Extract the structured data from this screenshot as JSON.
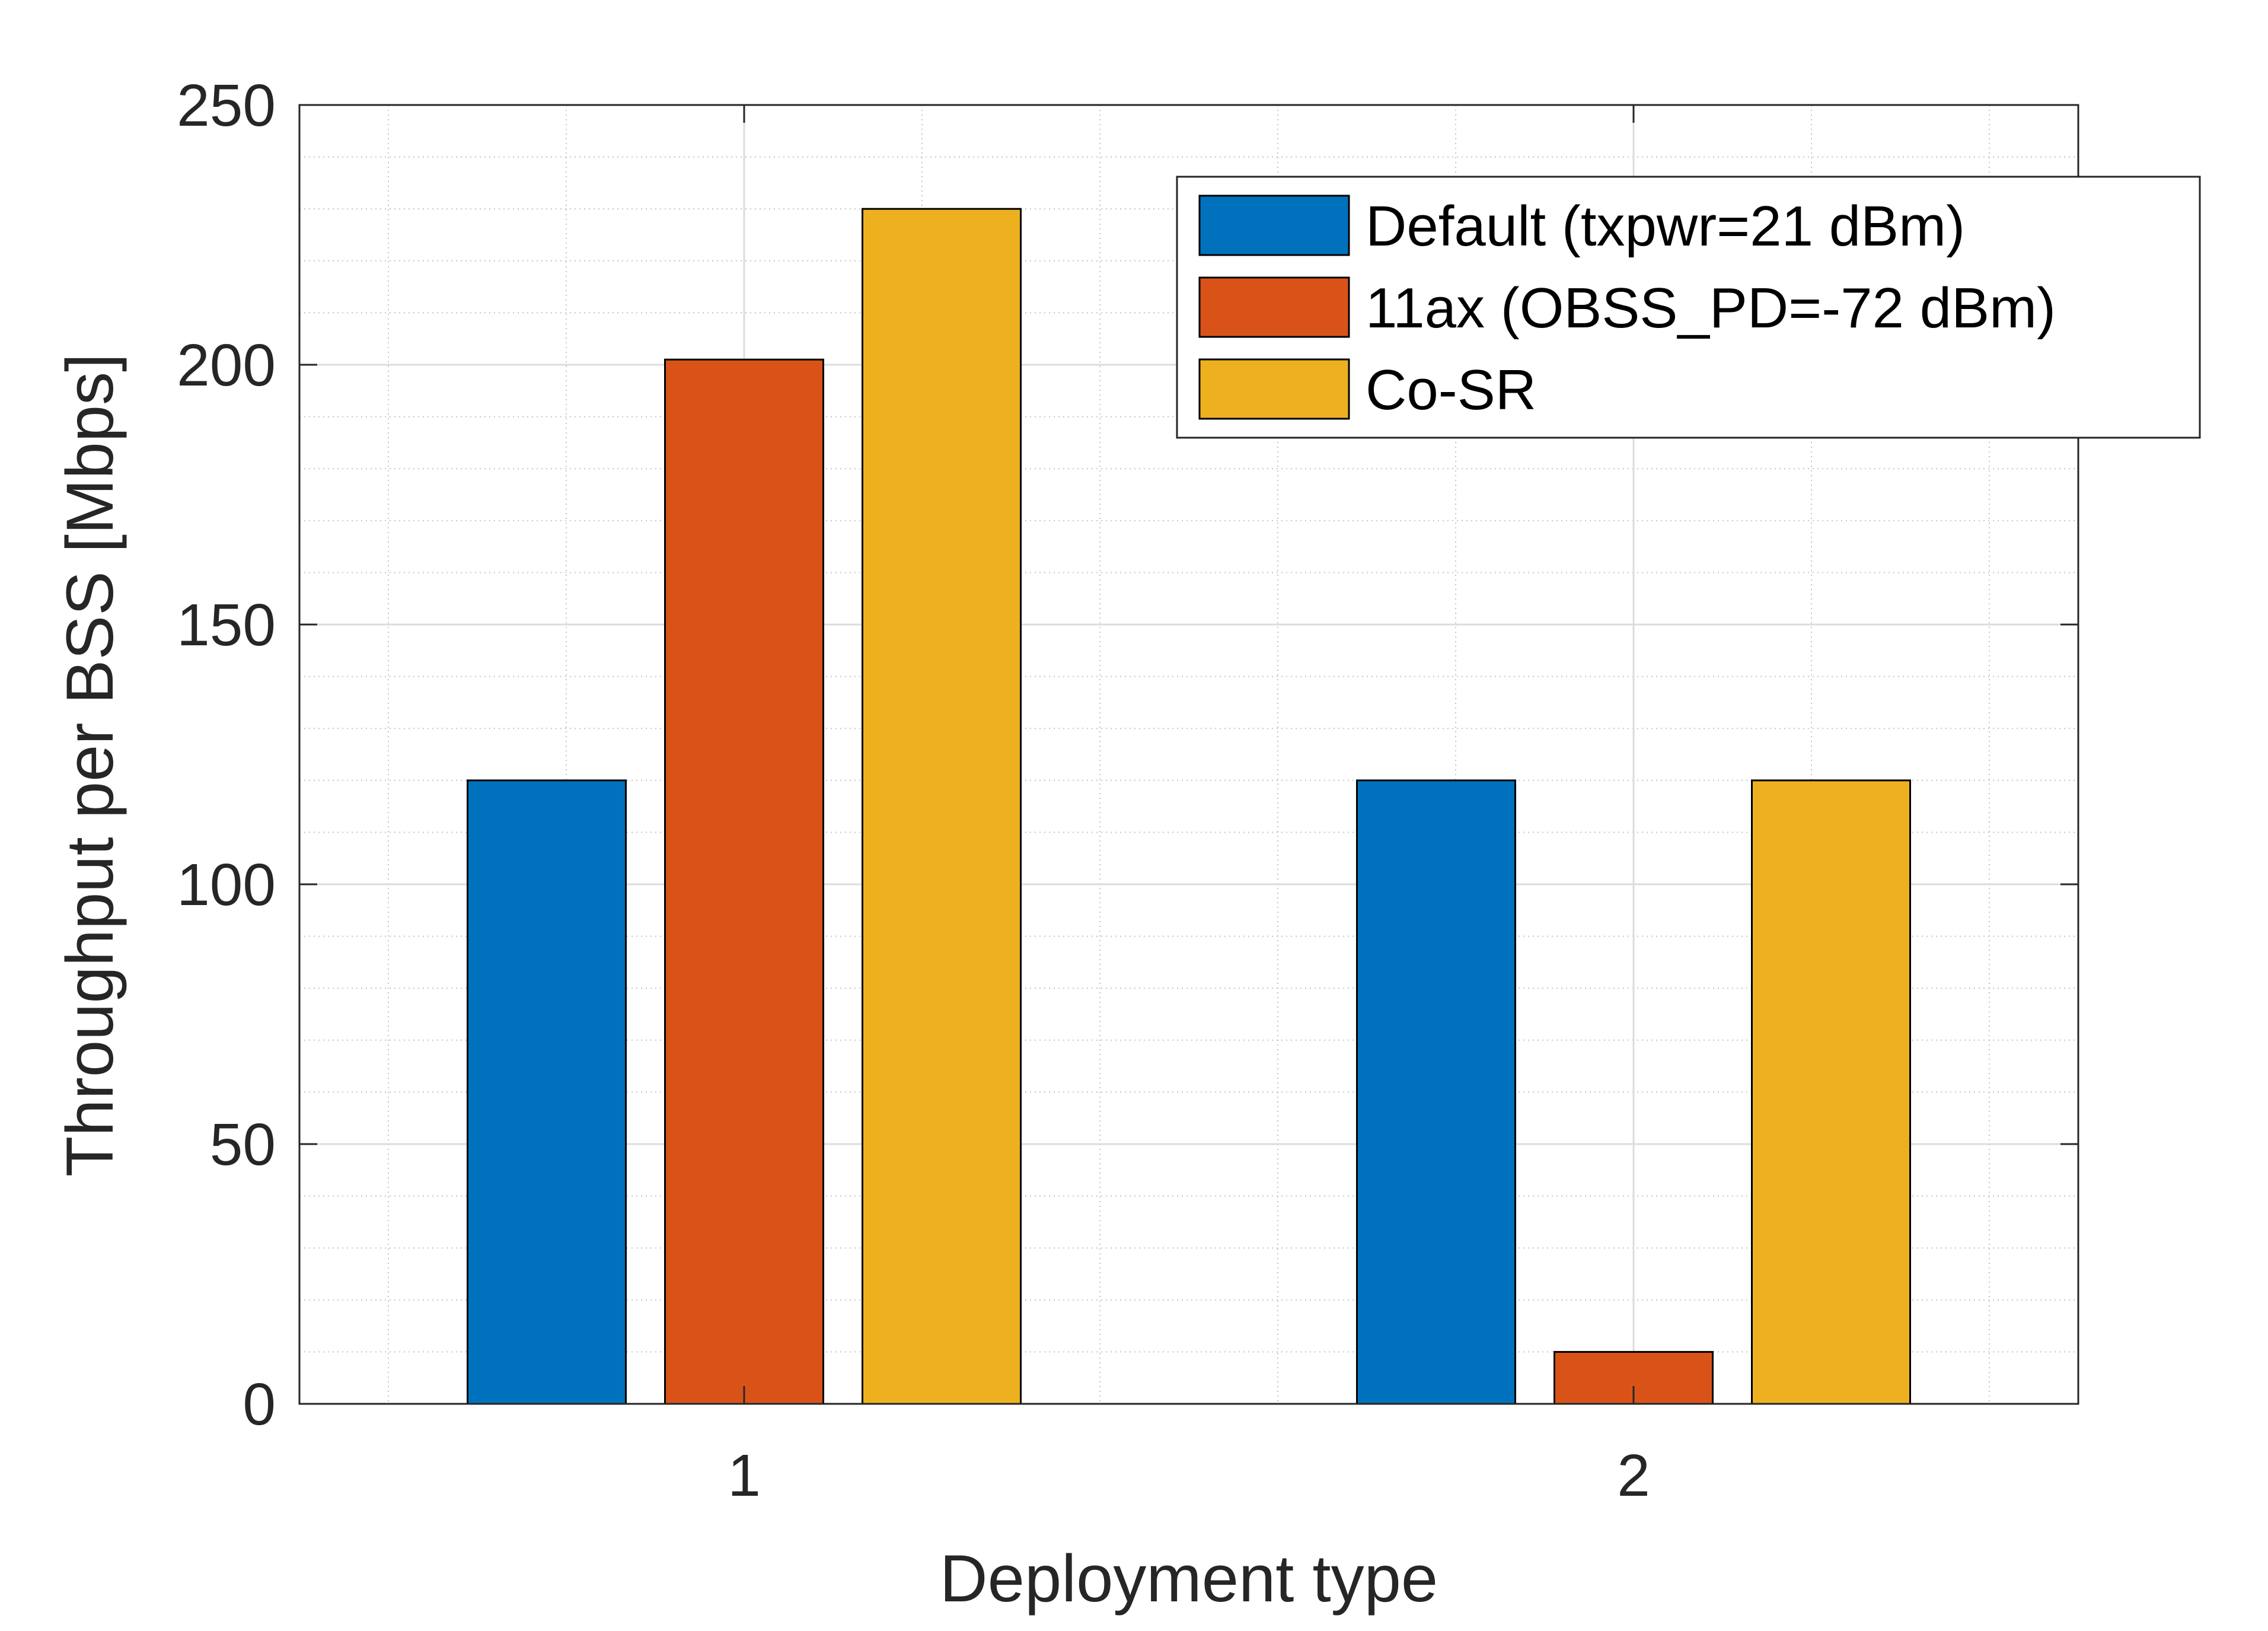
{
  "chart_data": {
    "type": "bar",
    "title": "",
    "xlabel": "Deployment type",
    "ylabel": "Throughput per BSS [Mbps]",
    "categories": [
      "1",
      "2"
    ],
    "ylim": [
      0,
      250
    ],
    "yticks": [
      0,
      50,
      100,
      150,
      200,
      250
    ],
    "xlim": [
      0.5,
      2.5
    ],
    "grid": true,
    "minor_grid": true,
    "legend_position": "top-right",
    "series": [
      {
        "name": "Default (txpwr=21 dBm)",
        "color": "#0072BD",
        "values": [
          120,
          120
        ]
      },
      {
        "name": "11ax (OBSS_PD=-72 dBm)",
        "color": "#D95319",
        "values": [
          201,
          10
        ]
      },
      {
        "name": "Co-SR",
        "color": "#EDB120",
        "values": [
          230,
          120
        ]
      }
    ]
  }
}
